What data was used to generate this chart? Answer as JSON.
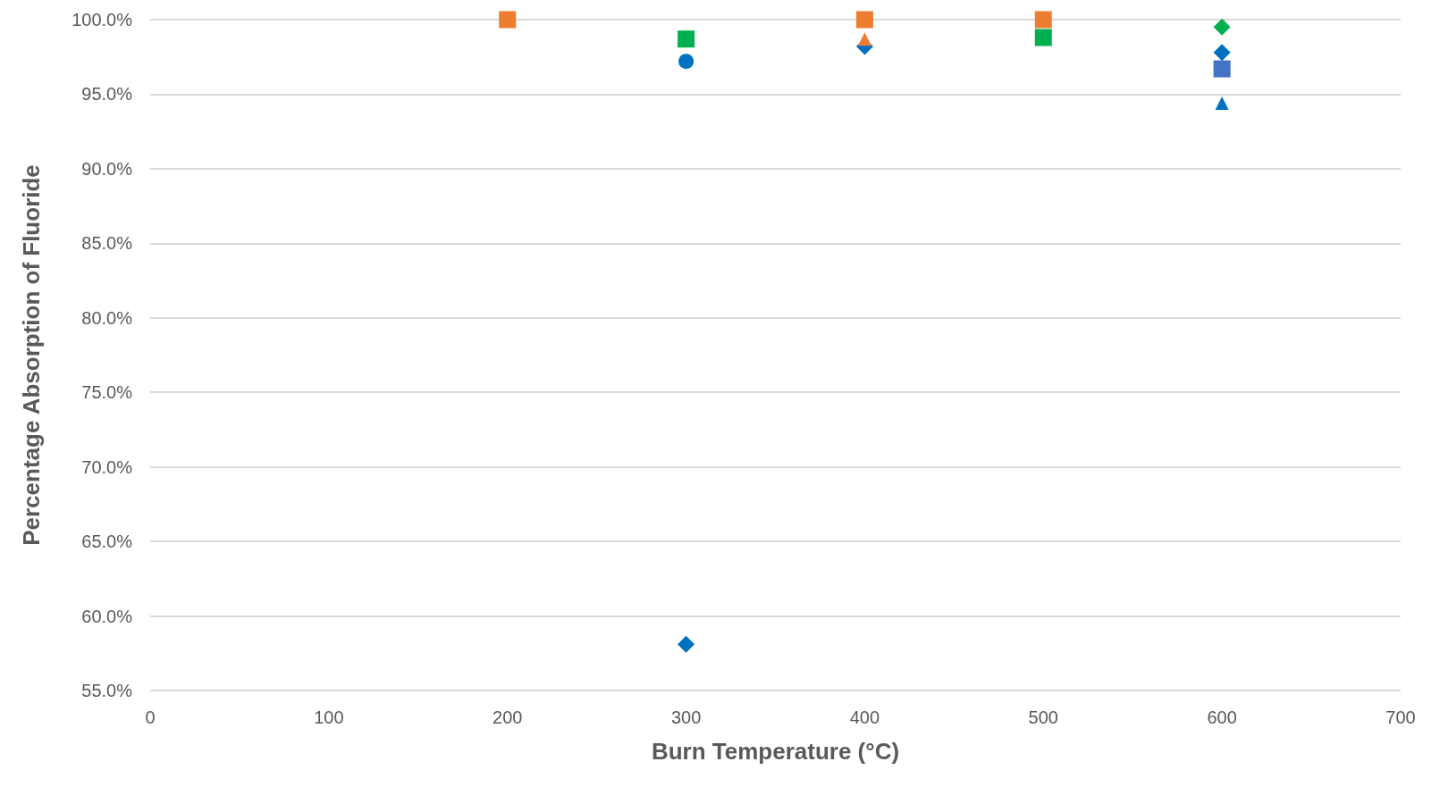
{
  "chart_data": {
    "type": "scatter",
    "xlabel": "Burn Temperature (°C)",
    "ylabel": "Percentage Absorption of Fluoride",
    "xlim": [
      0,
      700
    ],
    "xticks": [
      0,
      100,
      200,
      300,
      400,
      500,
      600,
      700
    ],
    "ylim": [
      55,
      100
    ],
    "yticks": [
      {
        "value": 55,
        "label": "55.0%"
      },
      {
        "value": 60,
        "label": "60.0%"
      },
      {
        "value": 65,
        "label": "65.0%"
      },
      {
        "value": 70,
        "label": "70.0%"
      },
      {
        "value": 75,
        "label": "75.0%"
      },
      {
        "value": 80,
        "label": "80.0%"
      },
      {
        "value": 85,
        "label": "85.0%"
      },
      {
        "value": 90,
        "label": "90.0%"
      },
      {
        "value": 95,
        "label": "95.0%"
      },
      {
        "value": 100,
        "label": "100.0%"
      }
    ],
    "grid": "y",
    "series": [
      {
        "color": "#0070c0",
        "marker": "diamond",
        "x": [
          300,
          400,
          600
        ],
        "values": [
          58.1,
          98.2,
          97.8
        ]
      },
      {
        "color": "#ed7d31",
        "marker": "triangle",
        "x": [
          400
        ],
        "values": [
          98.7
        ]
      },
      {
        "color": "#0070c0",
        "marker": "circle",
        "x": [
          300
        ],
        "values": [
          97.2
        ]
      },
      {
        "color": "#0070c0",
        "marker": "triangle",
        "x": [
          600
        ],
        "values": [
          94.4
        ]
      },
      {
        "color": "#4472c4",
        "marker": "square",
        "x": [
          600
        ],
        "values": [
          96.7
        ]
      },
      {
        "color": "#ed7d31",
        "marker": "square",
        "x": [
          200,
          400,
          500
        ],
        "values": [
          100,
          100,
          100
        ]
      },
      {
        "color": "#00b050",
        "marker": "square",
        "x": [
          300,
          500
        ],
        "values": [
          98.7,
          98.8
        ]
      },
      {
        "color": "#00b050",
        "marker": "diamond",
        "x": [
          600
        ],
        "values": [
          99.5
        ]
      }
    ]
  }
}
